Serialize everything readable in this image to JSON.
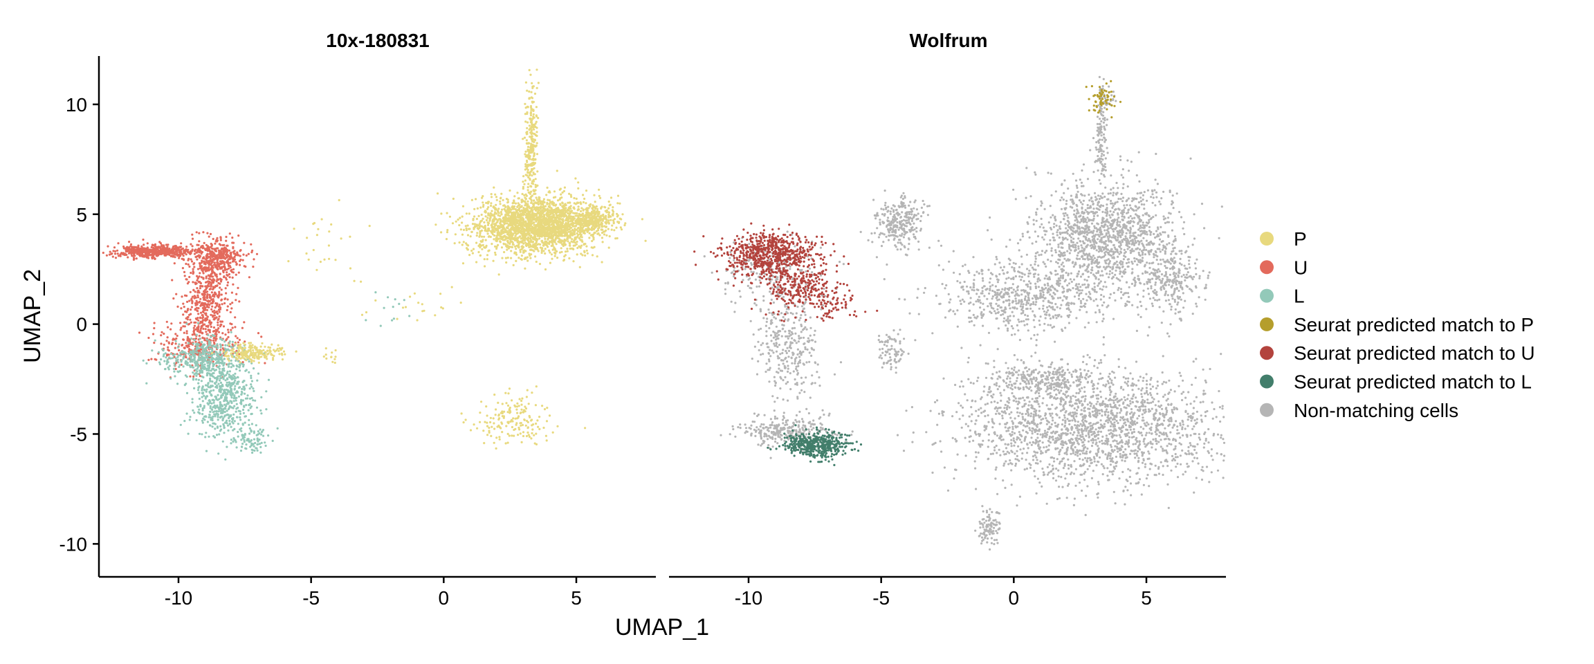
{
  "chart_data": {
    "type": "scatter",
    "xlabel": "UMAP_1",
    "ylabel": "UMAP_2",
    "xlim": [
      -13,
      8
    ],
    "ylim": [
      -11.5,
      12.2
    ],
    "x_ticks": [
      -10,
      -5,
      0,
      5
    ],
    "y_ticks": [
      -10,
      -5,
      0,
      5,
      10
    ],
    "legend_position": "right",
    "panels": [
      {
        "title": "10x-180831",
        "clusters": [
          {
            "series": "U",
            "cx": -10.9,
            "cy": 3.3,
            "sx": 0.8,
            "sy": 0.15,
            "n": 500
          },
          {
            "series": "U",
            "cx": -8.5,
            "cy": 3.0,
            "sx": 0.5,
            "sy": 0.45,
            "n": 350
          },
          {
            "series": "U",
            "cx": -8.9,
            "cy": 1.2,
            "sx": 0.45,
            "sy": 1.0,
            "n": 500
          },
          {
            "series": "U",
            "cx": -9.2,
            "cy": -1.0,
            "sx": 0.8,
            "sy": 0.55,
            "n": 300
          },
          {
            "series": "L",
            "cx": -9.0,
            "cy": -1.6,
            "sx": 0.8,
            "sy": 0.45,
            "n": 400
          },
          {
            "series": "L",
            "cx": -8.3,
            "cy": -3.3,
            "sx": 0.6,
            "sy": 0.9,
            "n": 550
          },
          {
            "series": "L",
            "cx": -7.2,
            "cy": -5.3,
            "sx": 0.3,
            "sy": 0.25,
            "n": 80
          },
          {
            "series": "P",
            "cx": -7.2,
            "cy": -1.3,
            "sx": 0.6,
            "sy": 0.2,
            "n": 200
          },
          {
            "series": "P",
            "cx": 3.5,
            "cy": 4.5,
            "sx": 1.2,
            "sy": 0.65,
            "n": 2300
          },
          {
            "series": "P",
            "cx": 5.6,
            "cy": 4.8,
            "sx": 0.45,
            "sy": 0.3,
            "n": 250
          },
          {
            "series": "P",
            "cx": 3.3,
            "cy": 8.2,
            "sx": 0.12,
            "sy": 1.4,
            "n": 260
          },
          {
            "series": "P",
            "cx": 2.6,
            "cy": -4.3,
            "sx": 0.7,
            "sy": 0.6,
            "n": 170
          },
          {
            "series": "P",
            "cx": -4.5,
            "cy": 3.8,
            "sx": 0.6,
            "sy": 1.0,
            "n": 25
          },
          {
            "series": "P",
            "cx": -1.5,
            "cy": 0.8,
            "sx": 1.2,
            "sy": 0.5,
            "n": 20
          },
          {
            "series": "P",
            "cx": -4.2,
            "cy": -1.5,
            "sx": 0.15,
            "sy": 0.2,
            "n": 12
          },
          {
            "series": "L",
            "cx": -2.0,
            "cy": 0.6,
            "sx": 0.5,
            "sy": 0.4,
            "n": 12
          }
        ]
      },
      {
        "title": "Wolfrum",
        "clusters": [
          {
            "series": "Non-matching cells",
            "cx": 3.5,
            "cy": 4.0,
            "sx": 1.3,
            "sy": 1.3,
            "n": 1300
          },
          {
            "series": "Non-matching cells",
            "cx": 0.5,
            "cy": 1.3,
            "sx": 1.6,
            "sy": 0.8,
            "n": 650
          },
          {
            "series": "Non-matching cells",
            "cx": 6.0,
            "cy": 2.0,
            "sx": 0.6,
            "sy": 0.8,
            "n": 250
          },
          {
            "series": "Non-matching cells",
            "cx": 3.0,
            "cy": -4.6,
            "sx": 2.5,
            "sy": 1.3,
            "n": 2000
          },
          {
            "series": "Non-matching cells",
            "cx": 1.0,
            "cy": -2.5,
            "sx": 1.0,
            "sy": 0.35,
            "n": 250
          },
          {
            "series": "Non-matching cells",
            "cx": 3.3,
            "cy": 8.4,
            "sx": 0.1,
            "sy": 1.0,
            "n": 120
          },
          {
            "series": "Non-matching cells",
            "cx": 3.5,
            "cy": 10.3,
            "sx": 0.2,
            "sy": 0.3,
            "n": 30
          },
          {
            "series": "Non-matching cells",
            "cx": -4.3,
            "cy": 4.6,
            "sx": 0.5,
            "sy": 0.6,
            "n": 280
          },
          {
            "series": "Non-matching cells",
            "cx": -4.6,
            "cy": -1.2,
            "sx": 0.3,
            "sy": 0.4,
            "n": 80
          },
          {
            "series": "Non-matching cells",
            "cx": -8.5,
            "cy": -1.0,
            "sx": 0.55,
            "sy": 1.2,
            "n": 300
          },
          {
            "series": "Non-matching cells",
            "cx": -8.5,
            "cy": -4.9,
            "sx": 0.85,
            "sy": 0.35,
            "n": 300
          },
          {
            "series": "Non-matching cells",
            "cx": -0.9,
            "cy": -9.3,
            "sx": 0.2,
            "sy": 0.4,
            "n": 100
          },
          {
            "series": "Non-matching cells",
            "cx": -9.0,
            "cy": 2.2,
            "sx": 1.2,
            "sy": 0.8,
            "n": 200
          },
          {
            "series": "Seurat predicted match to U",
            "cx": -9.2,
            "cy": 3.2,
            "sx": 0.9,
            "sy": 0.5,
            "n": 700
          },
          {
            "series": "Seurat predicted match to U",
            "cx": -8.3,
            "cy": 1.7,
            "sx": 0.7,
            "sy": 0.5,
            "n": 250
          },
          {
            "series": "Seurat predicted match to U",
            "cx": -6.8,
            "cy": 0.9,
            "sx": 0.6,
            "sy": 0.4,
            "n": 80
          },
          {
            "series": "Seurat predicted match to L",
            "cx": -7.4,
            "cy": -5.5,
            "sx": 0.6,
            "sy": 0.3,
            "n": 450
          },
          {
            "series": "Seurat predicted match to P",
            "cx": 3.3,
            "cy": 10.3,
            "sx": 0.25,
            "sy": 0.35,
            "n": 60
          }
        ]
      }
    ],
    "series": [
      {
        "name": "P",
        "color": "#E8D97E"
      },
      {
        "name": "U",
        "color": "#E36A5C"
      },
      {
        "name": "L",
        "color": "#93C9B9"
      },
      {
        "name": "Seurat predicted match to P",
        "color": "#B59E2C"
      },
      {
        "name": "Seurat predicted match to U",
        "color": "#B3433D"
      },
      {
        "name": "Seurat predicted match to L",
        "color": "#427E6B"
      },
      {
        "name": "Non-matching cells",
        "color": "#B5B5B5"
      }
    ]
  }
}
